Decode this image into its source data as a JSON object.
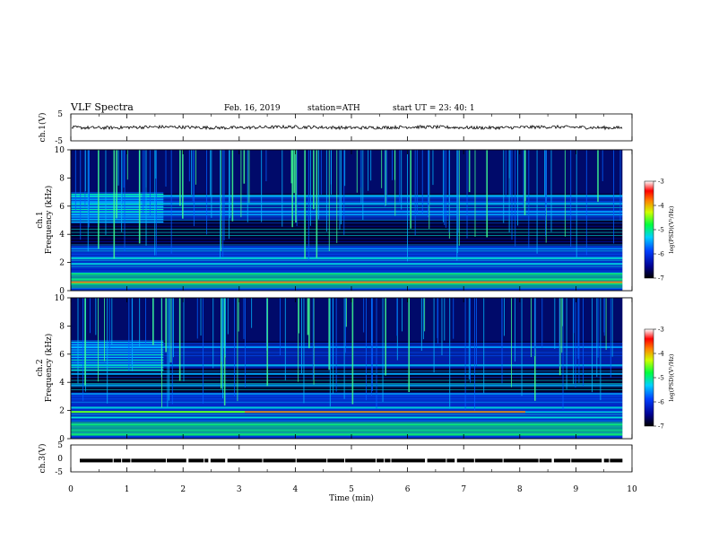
{
  "header": {
    "title": "VLF  Spectra",
    "date": "Feb. 16, 2019",
    "station": "station=ATH",
    "start_ut": "start  UT  =   23: 40: 1"
  },
  "chart_data": {
    "type": "heatmap",
    "x_axis": {
      "label": "Time  (min)",
      "range": [
        0,
        10
      ],
      "ticks": [
        "0",
        "1",
        "2",
        "3",
        "4",
        "5",
        "6",
        "7",
        "8",
        "9",
        "10"
      ],
      "data_end": 9.83
    },
    "panels": [
      {
        "id": "ch1-waveform",
        "ylabel": "ch.1(V)",
        "range": [
          -5,
          5
        ],
        "ticks": [
          "5",
          "-5"
        ],
        "series": {
          "name": "",
          "approx_level_V": 0.0,
          "amplitude_V": 0.6
        }
      },
      {
        "id": "ch1-spectrogram",
        "ylabel_top": "ch.1",
        "ylabel": "Frequency  (kHz)",
        "range": [
          0,
          10
        ],
        "ticks": [
          "0",
          "2",
          "4",
          "6",
          "8",
          "10"
        ],
        "colorbar": {
          "label": "log(PSD)(V²/Hz)",
          "range": [
            -7,
            -3
          ],
          "ticks": [
            "-3",
            "-4",
            "-5",
            "-6",
            "-7"
          ]
        },
        "features": {
          "strong_lines_kHz": [
            0.5,
            0.8,
            1.2,
            1.9,
            2.3,
            3.0,
            5.4,
            5.6,
            6.2,
            6.7
          ],
          "band_6_7_kHz_until_min": 1.65,
          "dark_gap_kHz": [
            3.2,
            5.0
          ],
          "sferic_count_approx": 140
        }
      },
      {
        "id": "ch2-spectrogram",
        "ylabel_top": "ch.2",
        "ylabel": "Frequency  (kHz)",
        "range": [
          0,
          10
        ],
        "ticks": [
          "0",
          "2",
          "4",
          "6",
          "8",
          "10"
        ],
        "colorbar": {
          "label": "log(PSD)(V²/Hz)",
          "range": [
            -7,
            -3
          ],
          "ticks": [
            "-3",
            "-4",
            "-5",
            "-6",
            "-7"
          ]
        },
        "features": {
          "strong_lines_kHz": [
            0.3,
            0.6,
            1.0,
            1.5,
            1.9,
            2.2,
            3.2,
            3.8,
            4.6,
            5.2,
            6.5
          ],
          "orange_line_kHz": 1.9,
          "orange_line_span_min": [
            3.1,
            8.1
          ],
          "band_5_7_kHz_until_min": 1.65,
          "sferic_count_approx": 130
        }
      },
      {
        "id": "ch3-waveform",
        "ylabel": "ch.3(V)",
        "range": [
          -5,
          5
        ],
        "ticks": [
          "5",
          "0",
          "-5"
        ],
        "series": {
          "name": "",
          "approx_level_V": -0.8,
          "amplitude_V": 0.3
        }
      }
    ]
  }
}
